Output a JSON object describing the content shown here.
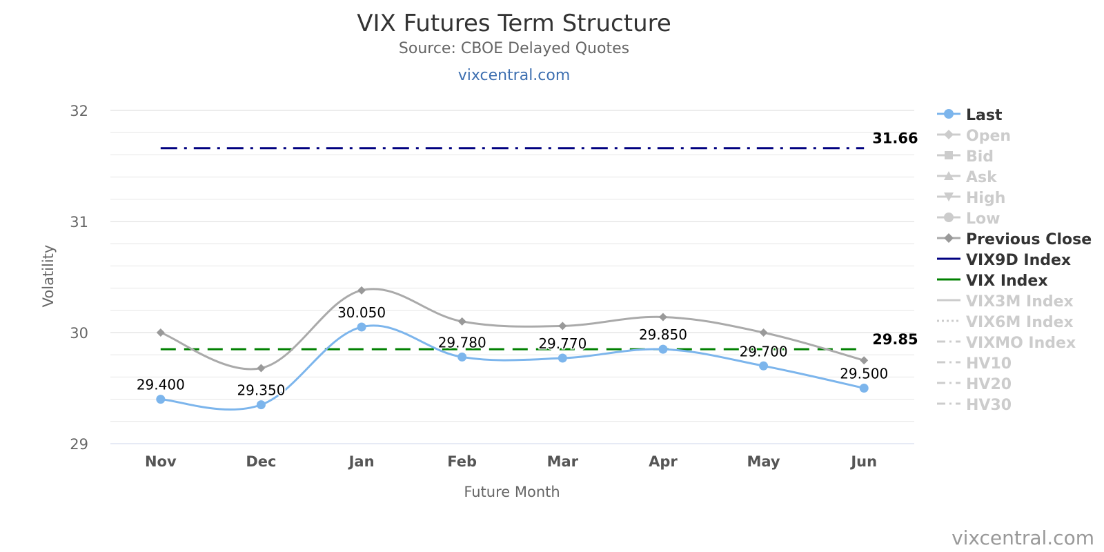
{
  "title": "VIX Futures Term Structure",
  "subtitle": "Source: CBOE Delayed Quotes",
  "site_link": "vixcentral.com",
  "watermark": "vixcentral.com",
  "chart_data": {
    "type": "line",
    "title": "VIX Futures Term Structure",
    "subtitle": "Source: CBOE Delayed Quotes",
    "xlabel": "Future Month",
    "ylabel": "Volatility",
    "categories": [
      "Nov",
      "Dec",
      "Jan",
      "Feb",
      "Mar",
      "Apr",
      "May",
      "Jun"
    ],
    "ylim": [
      29,
      32
    ],
    "yticks": [
      29,
      30,
      31,
      32
    ],
    "grid": true,
    "legend_position": "right",
    "series": [
      {
        "name": "Last",
        "color": "#7cb5ec",
        "marker": "circle",
        "visible": true,
        "data_labels": true,
        "values": [
          29.4,
          29.35,
          30.05,
          29.78,
          29.77,
          29.85,
          29.7,
          29.5
        ],
        "labels": [
          "29.400",
          "29.350",
          "30.050",
          "29.780",
          "29.770",
          "29.850",
          "29.700",
          "29.500"
        ]
      },
      {
        "name": "Open",
        "visible": false
      },
      {
        "name": "Bid",
        "visible": false
      },
      {
        "name": "Ask",
        "visible": false
      },
      {
        "name": "High",
        "visible": false
      },
      {
        "name": "Low",
        "visible": false
      },
      {
        "name": "Previous Close",
        "color": "#aaaaaa",
        "marker": "diamond",
        "visible": true,
        "values": [
          30.0,
          29.68,
          30.38,
          30.1,
          30.06,
          30.14,
          30.0,
          29.75
        ]
      },
      {
        "name": "VIX9D Index",
        "color": "#000080",
        "dash": "dash-dot",
        "visible": true,
        "value": 31.66,
        "end_label": "31.66"
      },
      {
        "name": "VIX Index",
        "color": "#008000",
        "dash": "dash",
        "visible": true,
        "value": 29.85,
        "end_label": "29.85"
      },
      {
        "name": "VIX3M Index",
        "visible": false
      },
      {
        "name": "VIX6M Index",
        "visible": false
      },
      {
        "name": "VIXMO Index",
        "visible": false
      },
      {
        "name": "HV10",
        "visible": false
      },
      {
        "name": "HV20",
        "visible": false
      },
      {
        "name": "HV30",
        "visible": false
      }
    ]
  }
}
